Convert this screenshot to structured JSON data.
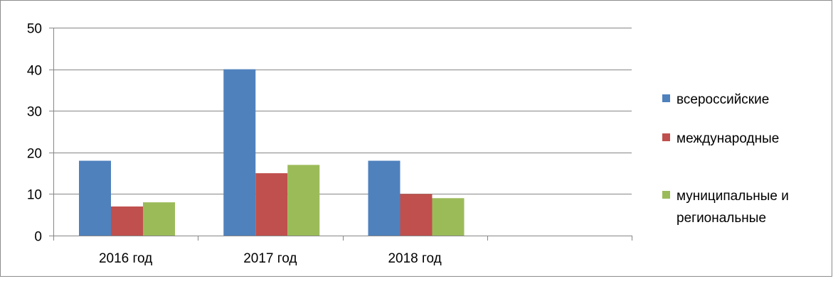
{
  "chart_data": {
    "type": "bar",
    "categories": [
      "2016 год",
      "2017 год",
      "2018 год",
      ""
    ],
    "series": [
      {
        "name": "всероссийские",
        "values": [
          18,
          40,
          18,
          null
        ],
        "color": "#4F81BD"
      },
      {
        "name": "международные",
        "values": [
          7,
          15,
          10,
          null
        ],
        "color": "#C0504D"
      },
      {
        "name": "муниципальные и региональные",
        "legend_lines": [
          "муниципальные и",
          "региональные"
        ],
        "values": [
          8,
          17,
          9,
          null
        ],
        "color": "#9BBB59"
      }
    ],
    "yticks": [
      "0",
      "10",
      "20",
      "30",
      "40",
      "50"
    ],
    "ylim": [
      0,
      50
    ],
    "grid": true,
    "legend_position": "right",
    "title": "",
    "xlabel": "",
    "ylabel": ""
  }
}
